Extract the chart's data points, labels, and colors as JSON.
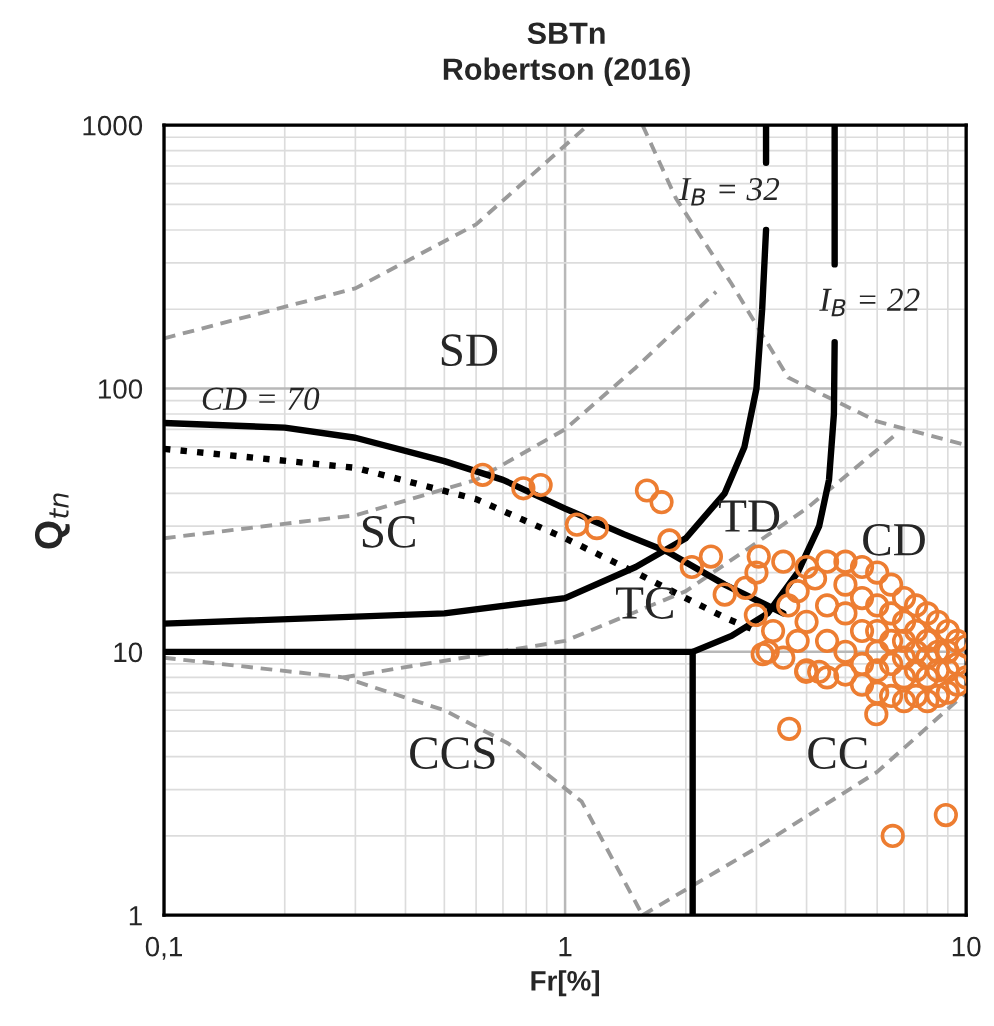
{
  "chart_data": {
    "type": "scatter",
    "title": "SBTn",
    "subtitle": "Robertson (2016)",
    "xlabel": "Fr[%]",
    "ylabel": "Q$_{tn}$",
    "log": "xy",
    "xlim": [
      0.1,
      10
    ],
    "ylim": [
      1,
      1000
    ],
    "xticks": [
      {
        "value": 0.1,
        "label": "0,1"
      },
      1,
      10
    ],
    "yticks": [
      1,
      10,
      100,
      1000
    ],
    "grid": true,
    "series": [
      {
        "type": "line",
        "marker": "none",
        "color": "#9a9a9a",
        "line_style": "dashed",
        "x": [
          0.1,
          0.3,
          0.6,
          1.14
        ],
        "values": [
          155,
          240,
          420,
          1000
        ]
      },
      {
        "type": "line",
        "marker": "none",
        "color": "#9a9a9a",
        "line_style": "dashed",
        "x": [
          1.56,
          1.89,
          2.6,
          3.6,
          6,
          10
        ],
        "values": [
          1000,
          527,
          250,
          110,
          75,
          61
        ]
      },
      {
        "type": "line",
        "marker": "none",
        "color": "#9a9a9a",
        "line_style": "dashed",
        "x": [
          0.1,
          0.3,
          0.6,
          1,
          1.5,
          2.38
        ],
        "values": [
          27,
          33,
          45,
          70,
          120,
          233
        ]
      },
      {
        "type": "line",
        "marker": "none",
        "color": "#9a9a9a",
        "line_style": "dashed",
        "x": [
          0.1,
          0.28,
          0.5,
          0.72,
          1.1,
          1.56
        ],
        "values": [
          9.5,
          8,
          6,
          4.5,
          2.7,
          1
        ]
      },
      {
        "type": "line",
        "marker": "none",
        "color": "#9a9a9a",
        "line_style": "dashed",
        "x": [
          0.28,
          1,
          2,
          4,
          6.8
        ],
        "values": [
          8,
          11,
          17,
          35,
          68.5
        ]
      },
      {
        "type": "line",
        "marker": "none",
        "color": "#9a9a9a",
        "line_style": "dashed",
        "x": [
          1.56,
          3,
          6,
          10
        ],
        "values": [
          1,
          1.8,
          3.5,
          7
        ]
      },
      {
        "type": "line",
        "marker": "none",
        "color": "#000000",
        "line_style": "solid",
        "x": [
          0.1,
          0.2,
          0.3,
          0.5,
          0.7,
          1,
          1.4,
          1.8,
          2.5,
          3.5
        ],
        "values": [
          74,
          71,
          65,
          53,
          45,
          35,
          28,
          24,
          18,
          14
        ]
      },
      {
        "type": "line",
        "marker": "none",
        "color": "#000000",
        "line_style": "dotted",
        "x": [
          0.1,
          0.3,
          0.6,
          1,
          1.5,
          2,
          2.5,
          3
        ],
        "values": [
          59,
          50,
          38,
          27,
          20,
          16,
          13.5,
          12
        ]
      },
      {
        "type": "line",
        "marker": "none",
        "color": "#000000",
        "line_style": "solid",
        "x": [
          0.1,
          0.5,
          1,
          1.5,
          2,
          2.5,
          2.8,
          3,
          3.1,
          3.17,
          null,
          3.17,
          3.17
        ],
        "values": [
          12.8,
          14,
          16,
          21,
          27,
          40,
          60,
          100,
          200,
          400,
          null,
          720,
          1000
        ]
      },
      {
        "type": "line",
        "marker": "none",
        "color": "#000000",
        "line_style": "solid",
        "x": [
          2.08,
          2.6,
          3.2,
          3.8,
          4.3,
          4.55,
          4.68,
          4.7,
          null,
          4.7,
          4.7
        ],
        "values": [
          10,
          11.5,
          14,
          20,
          30,
          45,
          80,
          150,
          null,
          296,
          1000
        ]
      },
      {
        "type": "line",
        "marker": "none",
        "color": "#000000",
        "line_style": "solid",
        "x": [
          0.1,
          2.08,
          2.08
        ],
        "values": [
          10,
          10,
          1
        ]
      },
      {
        "marker": "circle",
        "color": "#ed7d31",
        "x": [
          0.623,
          0.787,
          0.869,
          1.07,
          1.2,
          1.6,
          1.74,
          1.82,
          2.07,
          2.31,
          2.5,
          2.99,
          3.04,
          3.0,
          2.82,
          3.62,
          5.97,
          6.56,
          8.9,
          3.11,
          3.99,
          4.3,
          3.5,
          4,
          4.5,
          5,
          5.5,
          6,
          6.5,
          7,
          7.5,
          8,
          8.5,
          9,
          9.5,
          10,
          3.2,
          3.5,
          4,
          4.5,
          5,
          5.5,
          6,
          6.5,
          7,
          7.5,
          8,
          8.5,
          9,
          9.5,
          10,
          3.3,
          3.8,
          4,
          4.5,
          4.5,
          5,
          5,
          5,
          5.5,
          5.5,
          5.5,
          6,
          6,
          6,
          6,
          6.5,
          6.5,
          6.5,
          7,
          7,
          7,
          7,
          7.5,
          7.5,
          7.5,
          8,
          8,
          8,
          8.5,
          8.5,
          9,
          9,
          9.5,
          3.8,
          4.2,
          3.6
        ],
        "values": [
          47,
          41.8,
          43,
          30.4,
          29.5,
          41,
          37,
          26.5,
          21,
          23,
          16.5,
          13.8,
          23,
          20,
          17.5,
          5.1,
          5.8,
          2.0,
          2.4,
          9.8,
          8.4,
          8.4,
          22,
          21,
          22,
          22,
          21,
          20,
          18,
          16,
          15,
          14,
          13,
          12,
          11,
          10.5,
          10,
          9.5,
          8.5,
          8,
          8.2,
          7.5,
          7,
          6.8,
          6.5,
          6.8,
          6.5,
          6.8,
          7,
          7.5,
          8,
          12,
          11,
          13,
          15,
          11,
          18,
          14,
          10,
          16,
          12,
          9,
          15,
          12,
          10,
          8.5,
          14,
          11,
          9,
          13,
          11,
          9.5,
          8,
          12,
          10,
          8.5,
          11,
          9.5,
          8,
          10,
          8.5,
          10,
          8.5,
          9,
          17,
          19,
          15
        ]
      }
    ],
    "annotations": [
      "SD",
      "SC",
      "TD",
      "CD",
      "TC",
      "CCS",
      "CC",
      "CD = 70",
      "I$_{B}$ = 32",
      "I$_{B}$ = 22"
    ]
  }
}
